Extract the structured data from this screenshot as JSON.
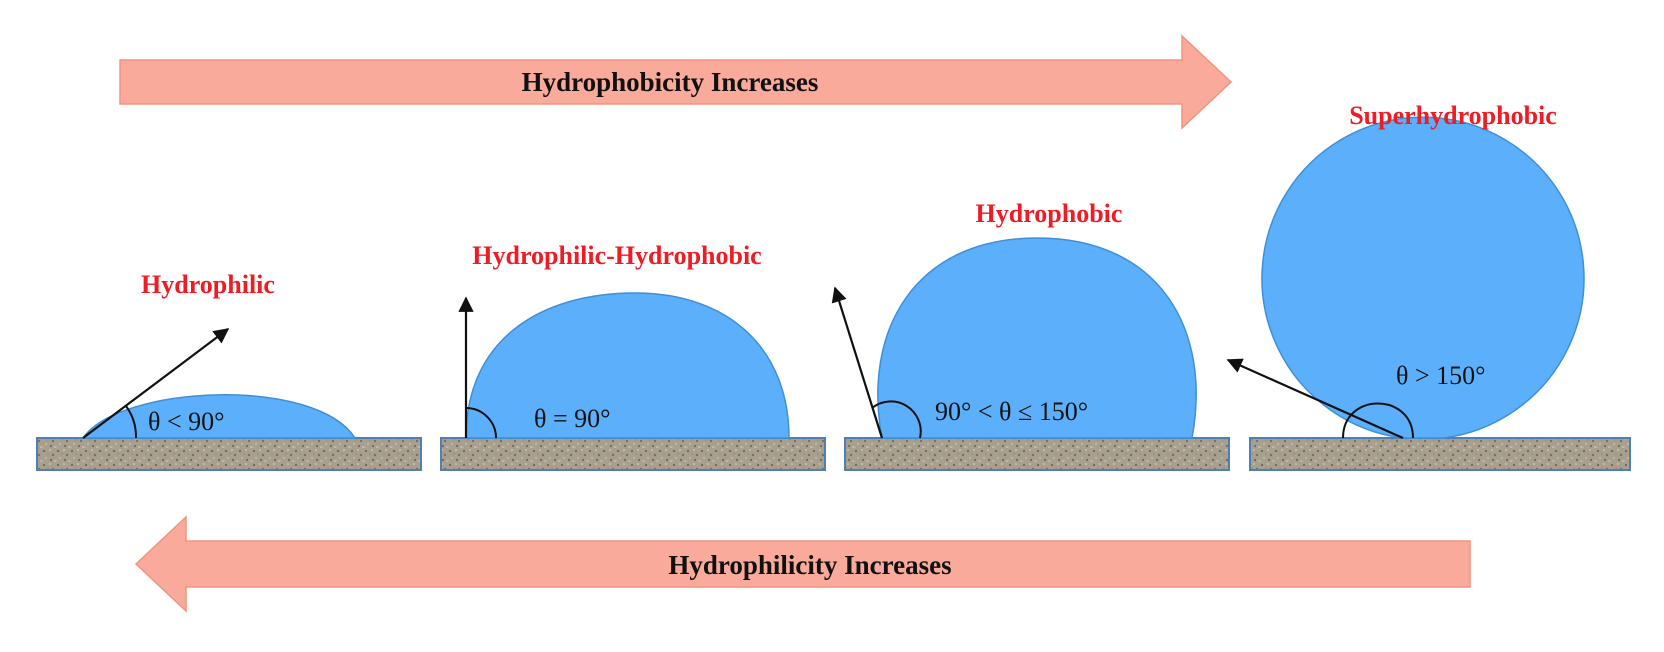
{
  "colors": {
    "arrow_fill": "#f9aa9b",
    "state_label": "#ee1c25",
    "droplet": "#5cb0fb",
    "droplet_edge": "#3f8fd6",
    "substrate": "#a59b8a",
    "substrate_edge": "#4f7fb6"
  },
  "top_arrow": {
    "direction": "right",
    "label": "Hydrophobicity Increases"
  },
  "bottom_arrow": {
    "direction": "left",
    "label": "Hydrophilicity Increases"
  },
  "states": [
    {
      "label": "Hydrophilic",
      "angle_text": "θ < 90°",
      "contact_angle_deg": 40
    },
    {
      "label": "Hydrophilic-Hydrophobic",
      "angle_text": "θ = 90°",
      "contact_angle_deg": 90
    },
    {
      "label": "Hydrophobic",
      "angle_text": "90° < θ ≤ 150°",
      "contact_angle_deg": 110
    },
    {
      "label": "Superhydrophobic",
      "angle_text": "θ > 150°",
      "contact_angle_deg": 155
    }
  ]
}
